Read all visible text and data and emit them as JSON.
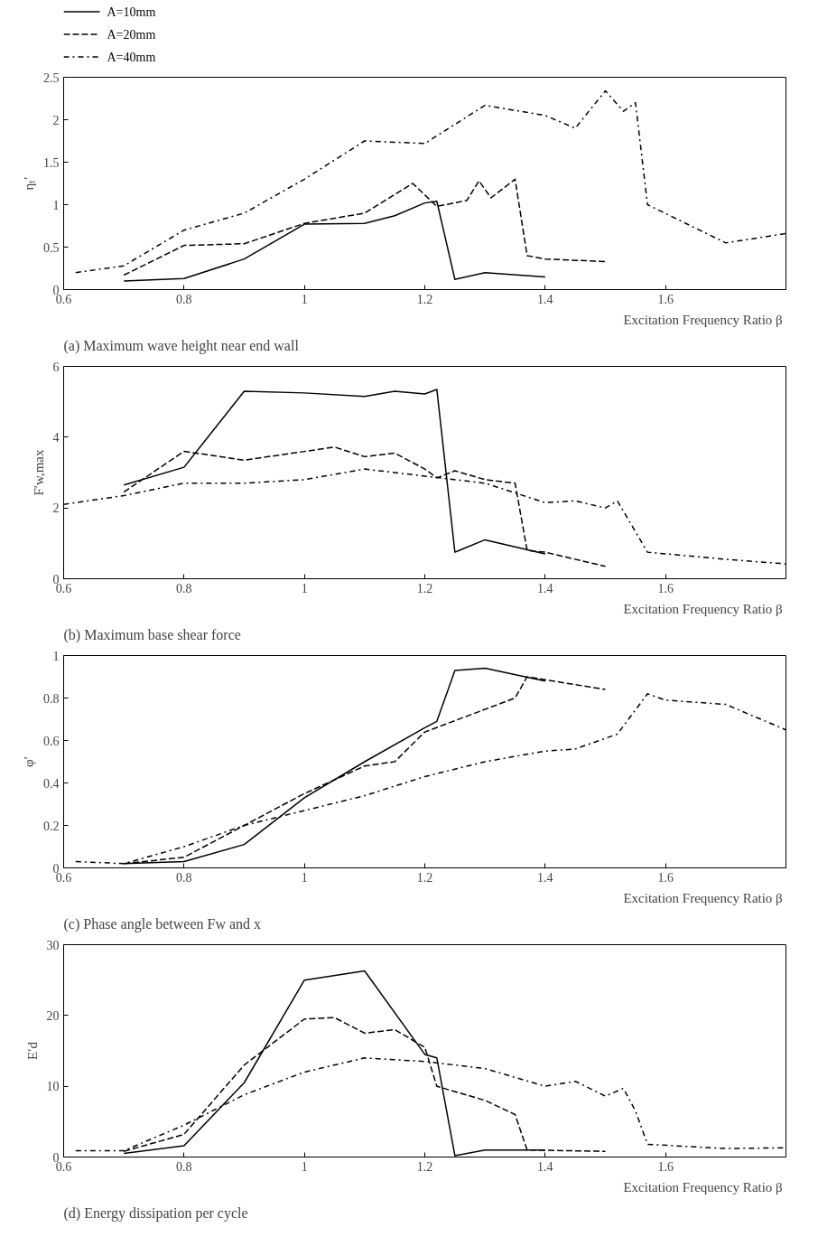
{
  "chart_data": [
    {
      "type": "line",
      "title": "(a) Maximum wave height near end wall",
      "xlabel": "Excitation Frequency Ratio  β",
      "ylabel": "ηₜ′",
      "xlim": [
        0.6,
        1.8
      ],
      "xticks": [
        0.6,
        0.8,
        1,
        1.2,
        1.4,
        1.6
      ],
      "ylim": [
        0,
        2.5
      ],
      "yticks": [
        0,
        0.5,
        1,
        1.5,
        2,
        2.5
      ],
      "grid": false,
      "legend": "top left",
      "series": [
        {
          "name": "A=10mm",
          "color": "#000000",
          "line_style": "solid",
          "x": [
            0.7,
            0.8,
            0.9,
            1.0,
            1.1,
            1.15,
            1.2,
            1.22,
            1.25,
            1.3,
            1.4
          ],
          "values": [
            0.1,
            0.13,
            0.36,
            0.77,
            0.78,
            0.87,
            1.02,
            1.04,
            0.12,
            0.2,
            0.15
          ]
        },
        {
          "name": "A=20mm",
          "color": "#000000",
          "line_style": "dashed",
          "x": [
            0.7,
            0.8,
            0.9,
            1.0,
            1.1,
            1.18,
            1.22,
            1.27,
            1.29,
            1.31,
            1.35,
            1.37,
            1.4,
            1.5
          ],
          "values": [
            0.17,
            0.52,
            0.54,
            0.78,
            0.9,
            1.25,
            0.98,
            1.05,
            1.28,
            1.08,
            1.3,
            0.4,
            0.36,
            0.33
          ]
        },
        {
          "name": "A=40mm",
          "color": "#000000",
          "line_style": "dashdot",
          "x": [
            0.62,
            0.7,
            0.8,
            0.9,
            1.0,
            1.1,
            1.2,
            1.3,
            1.4,
            1.45,
            1.5,
            1.53,
            1.55,
            1.57,
            1.7,
            1.8
          ],
          "values": [
            0.2,
            0.28,
            0.7,
            0.9,
            1.3,
            1.75,
            1.72,
            2.17,
            2.05,
            1.9,
            2.34,
            2.1,
            2.2,
            1.0,
            0.55,
            0.66
          ]
        }
      ]
    },
    {
      "type": "line",
      "title": "(b) Maximum base shear force",
      "xlabel": "Excitation Frequency Ratio  β",
      "ylabel": "F′w,max",
      "xlim": [
        0.6,
        1.8
      ],
      "xticks": [
        0.6,
        0.8,
        1,
        1.2,
        1.4,
        1.6
      ],
      "ylim": [
        0,
        6
      ],
      "yticks": [
        0,
        2,
        4,
        6
      ],
      "grid": false,
      "series": [
        {
          "color": "#000000",
          "line_style": "solid",
          "x": [
            0.7,
            0.8,
            0.9,
            1.0,
            1.1,
            1.15,
            1.2,
            1.22,
            1.25,
            1.3,
            1.4
          ],
          "values": [
            2.65,
            3.15,
            5.3,
            5.25,
            5.15,
            5.3,
            5.22,
            5.35,
            0.75,
            1.1,
            0.7
          ]
        },
        {
          "color": "#000000",
          "line_style": "dashed",
          "x": [
            0.7,
            0.8,
            0.9,
            1.05,
            1.1,
            1.15,
            1.2,
            1.22,
            1.25,
            1.3,
            1.35,
            1.37,
            1.4,
            1.5
          ],
          "values": [
            2.45,
            3.6,
            3.35,
            3.72,
            3.45,
            3.55,
            3.1,
            2.85,
            3.05,
            2.8,
            2.7,
            0.8,
            0.75,
            0.35
          ]
        },
        {
          "color": "#000000",
          "line_style": "dashdot",
          "x": [
            0.6,
            0.7,
            0.8,
            0.9,
            1.0,
            1.1,
            1.2,
            1.3,
            1.4,
            1.45,
            1.5,
            1.52,
            1.57,
            1.7,
            1.8
          ],
          "values": [
            2.1,
            2.35,
            2.7,
            2.7,
            2.8,
            3.1,
            2.9,
            2.7,
            2.15,
            2.2,
            2.0,
            2.2,
            0.75,
            0.55,
            0.42
          ]
        }
      ]
    },
    {
      "type": "line",
      "title": "(c) Phase angle between Fw and x",
      "xlabel": "Excitation Frequency Ratio  β",
      "ylabel": "φ′",
      "xlim": [
        0.6,
        1.8
      ],
      "xticks": [
        0.6,
        0.8,
        1,
        1.2,
        1.4,
        1.6
      ],
      "ylim": [
        0,
        1
      ],
      "yticks": [
        0,
        0.2,
        0.4,
        0.6,
        0.8,
        1
      ],
      "grid": false,
      "series": [
        {
          "color": "#000000",
          "line_style": "solid",
          "x": [
            0.7,
            0.8,
            0.9,
            1.0,
            1.1,
            1.2,
            1.22,
            1.25,
            1.3,
            1.4
          ],
          "values": [
            0.02,
            0.03,
            0.11,
            0.33,
            0.5,
            0.66,
            0.69,
            0.93,
            0.94,
            0.88
          ]
        },
        {
          "color": "#000000",
          "line_style": "dashed",
          "x": [
            0.7,
            0.8,
            0.9,
            1.0,
            1.1,
            1.15,
            1.2,
            1.35,
            1.37,
            1.5
          ],
          "values": [
            0.02,
            0.05,
            0.2,
            0.35,
            0.48,
            0.5,
            0.64,
            0.8,
            0.9,
            0.84
          ]
        },
        {
          "color": "#000000",
          "line_style": "dashdot",
          "x": [
            0.62,
            0.7,
            0.8,
            0.9,
            1.0,
            1.1,
            1.2,
            1.3,
            1.4,
            1.45,
            1.52,
            1.57,
            1.6,
            1.7,
            1.8
          ],
          "values": [
            0.03,
            0.02,
            0.1,
            0.2,
            0.27,
            0.34,
            0.43,
            0.5,
            0.55,
            0.56,
            0.63,
            0.82,
            0.79,
            0.77,
            0.65
          ]
        }
      ]
    },
    {
      "type": "line",
      "title": "(d) Energy dissipation per cycle",
      "xlabel": "Excitation Frequency Ratio  β",
      "ylabel": "E′d",
      "xlim": [
        0.6,
        1.8
      ],
      "xticks": [
        0.6,
        0.8,
        1,
        1.2,
        1.4,
        1.6
      ],
      "ylim": [
        0,
        30
      ],
      "yticks": [
        0,
        10,
        20,
        30
      ],
      "grid": false,
      "series": [
        {
          "color": "#000000",
          "line_style": "solid",
          "x": [
            0.7,
            0.8,
            0.9,
            1.0,
            1.1,
            1.2,
            1.22,
            1.25,
            1.3,
            1.4
          ],
          "values": [
            0.5,
            1.6,
            10.5,
            25,
            26.3,
            14.5,
            14,
            0.2,
            1,
            1
          ]
        },
        {
          "color": "#000000",
          "line_style": "dashed",
          "x": [
            0.7,
            0.8,
            0.9,
            1.0,
            1.05,
            1.1,
            1.15,
            1.2,
            1.22,
            1.3,
            1.35,
            1.37,
            1.5
          ],
          "values": [
            0.8,
            3.2,
            13,
            19.5,
            19.7,
            17.5,
            18,
            15.5,
            10,
            8,
            6,
            1,
            0.8
          ]
        },
        {
          "color": "#000000",
          "line_style": "dashdot",
          "x": [
            0.62,
            0.7,
            0.8,
            0.9,
            1.0,
            1.1,
            1.2,
            1.3,
            1.4,
            1.45,
            1.5,
            1.53,
            1.55,
            1.57,
            1.7,
            1.8
          ],
          "values": [
            0.9,
            0.9,
            4.5,
            8.8,
            12,
            14,
            13.5,
            12.5,
            10,
            10.7,
            8.6,
            9.7,
            6.5,
            1.8,
            1.2,
            1.3
          ]
        }
      ]
    }
  ]
}
